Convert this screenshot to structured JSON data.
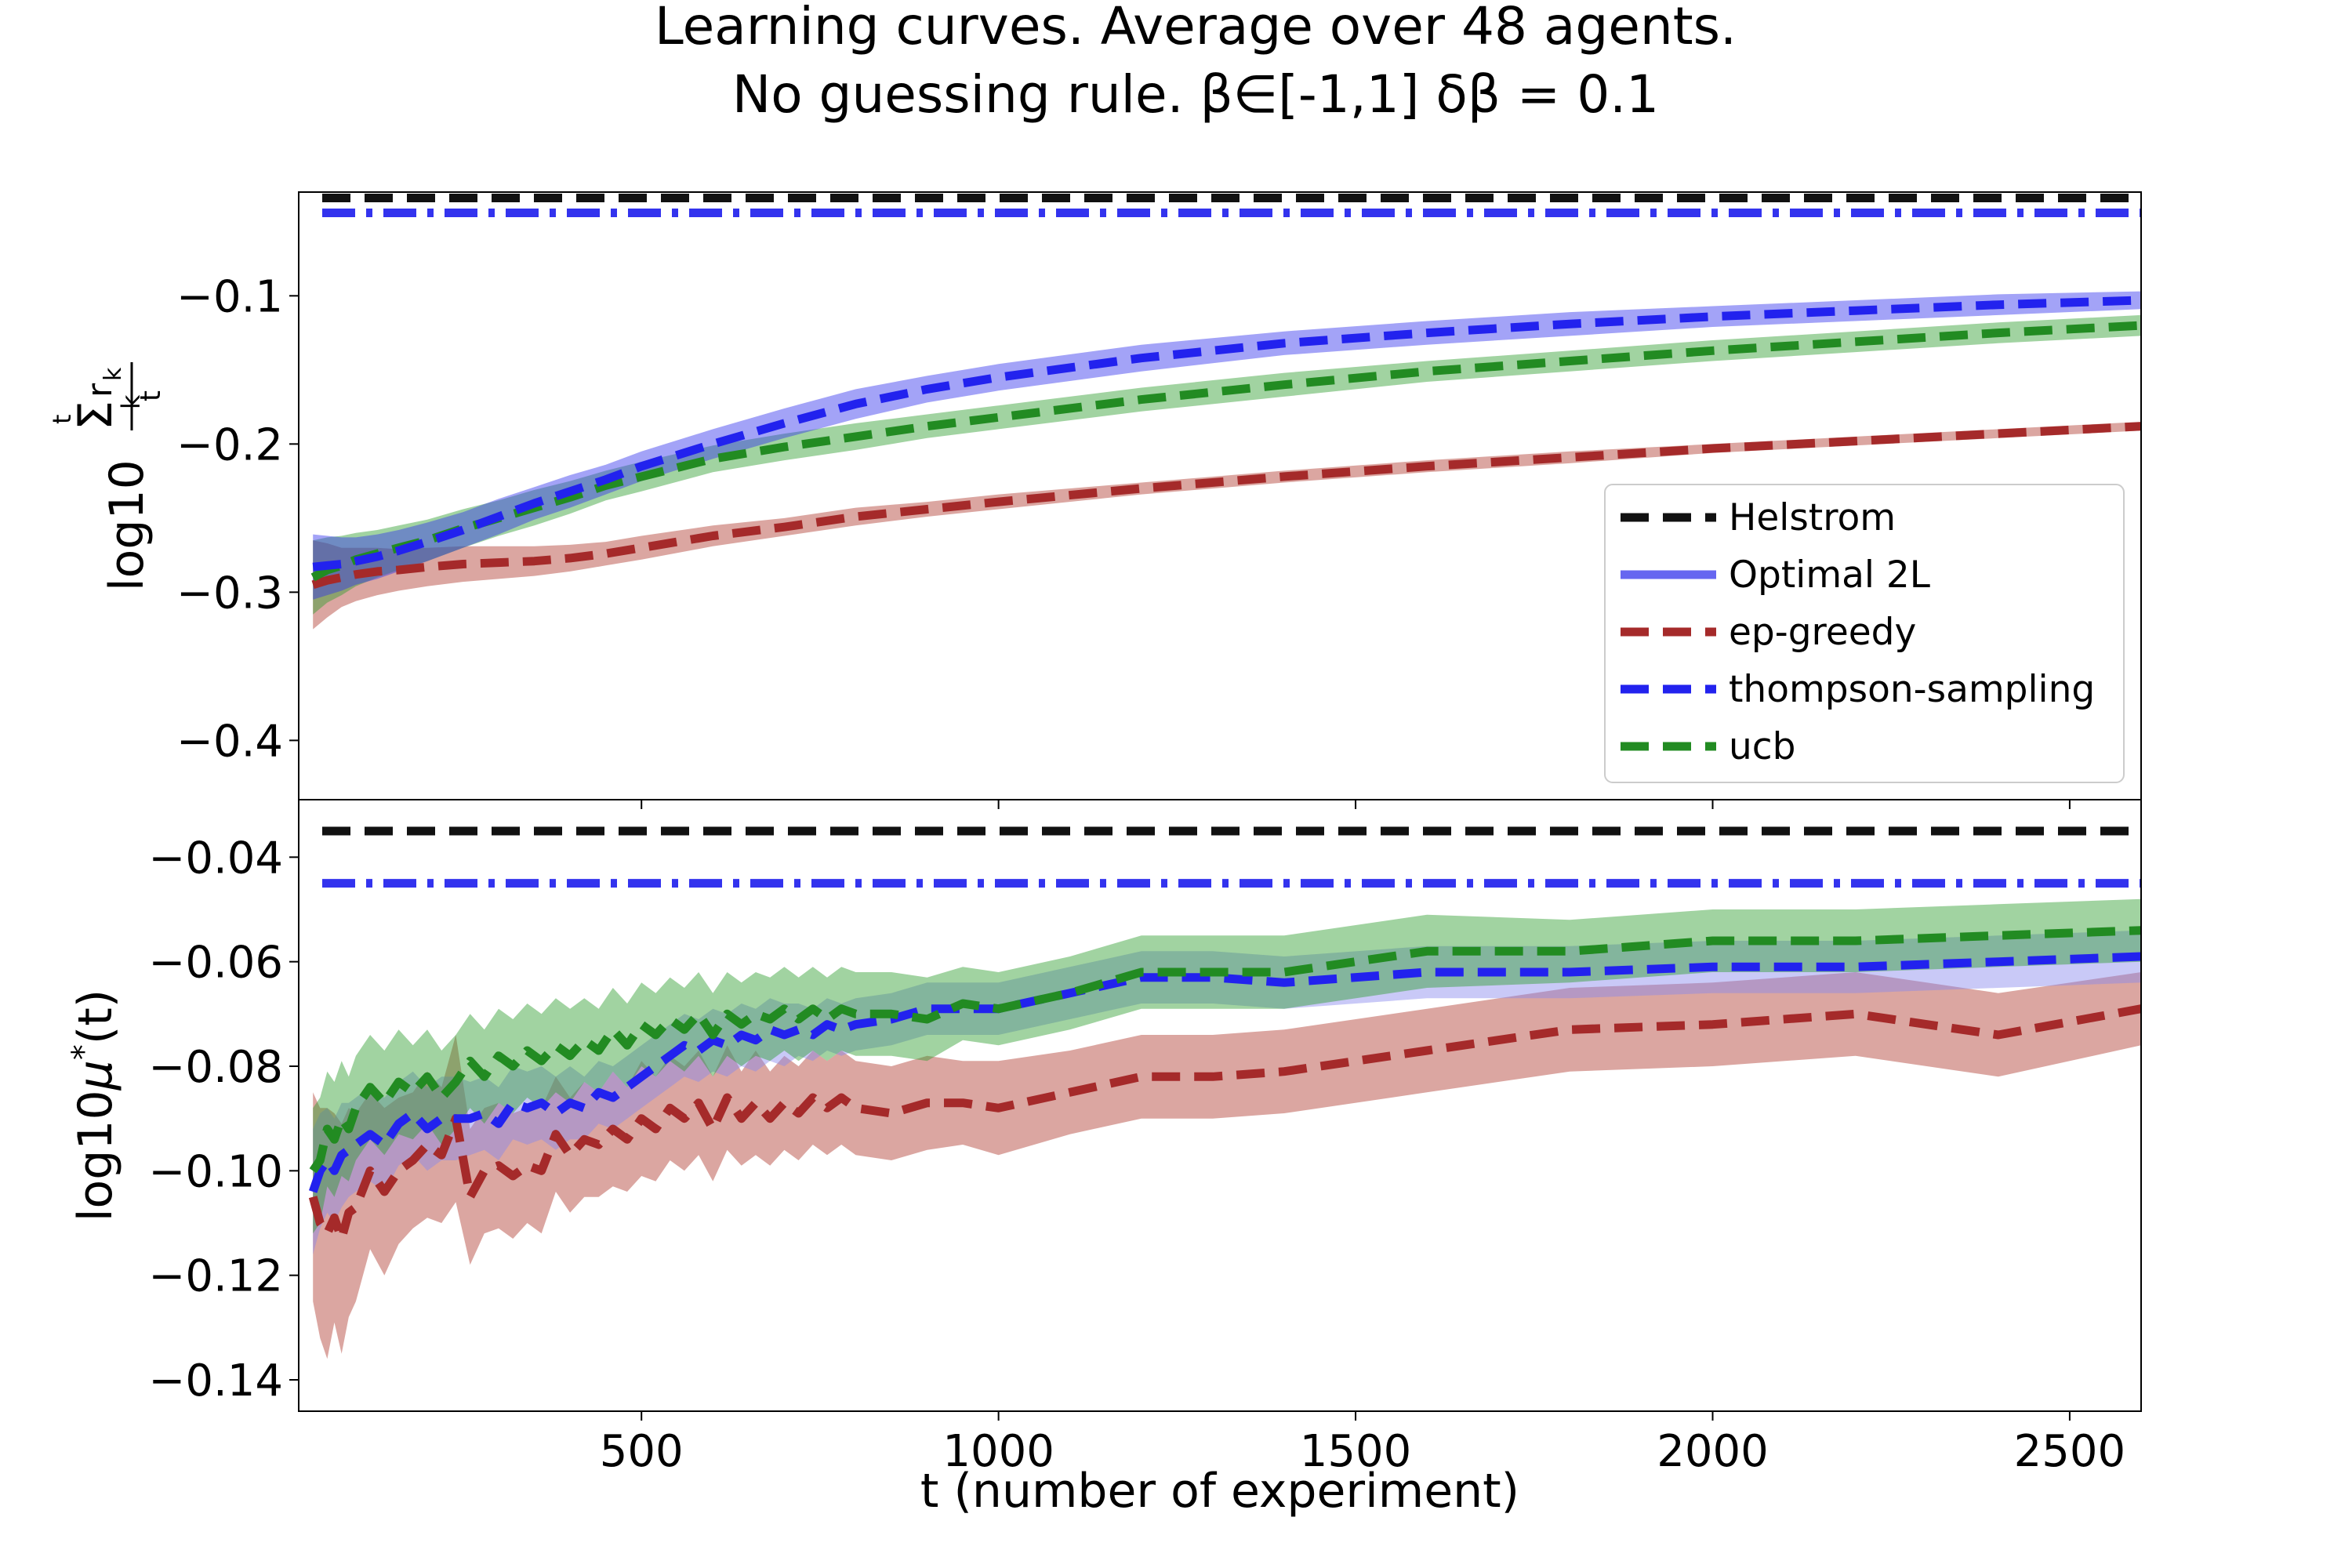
{
  "chart_data": {
    "type": "line",
    "title_line1": "Learning curves. Average over 48 agents.",
    "title_line2": "No guessing rule. β∈[-1,1] δβ =  0.1",
    "xlabel": "t (number of experiment)",
    "xlim": [
      20,
      2600
    ],
    "xticks": [
      500,
      1000,
      1500,
      2000,
      2500
    ],
    "xtick_labels": [
      "500",
      "1000",
      "1500",
      "2000",
      "2500"
    ],
    "legend": {
      "placement": "lower-right of top panel",
      "entries": [
        {
          "label": "Helstrom",
          "color": "#111111",
          "style": "dashed"
        },
        {
          "label": "Optimal 2L",
          "color": "#5555ee",
          "style": "solid"
        },
        {
          "label": "ep-greedy",
          "color": "#a52a2a",
          "style": "dashed"
        },
        {
          "label": "thompson-sampling",
          "color": "#2222ee",
          "style": "dashed"
        },
        {
          "label": "ucb",
          "color": "#228b22",
          "style": "dashed"
        }
      ]
    },
    "panels": [
      {
        "ylabel_main": "log10",
        "ylabel_sigma": "Σ",
        "ylabel_sup": "t",
        "ylabel_sub": "k",
        "ylabel_r": "r",
        "ylabel_rk": "k",
        "ylabel_den": "t",
        "ylim": [
          -0.44,
          -0.03
        ],
        "yticks": [
          -0.1,
          -0.2,
          -0.3,
          -0.4
        ],
        "ytick_labels": [
          "−0.1",
          "−0.2",
          "−0.3",
          "−0.4"
        ],
        "hlines": [
          {
            "name": "Helstrom",
            "y": -0.034,
            "color": "#111111",
            "style": "dashed"
          },
          {
            "name": "Optimal 2L",
            "y": -0.044,
            "color": "#3333ee",
            "style": "dashdot"
          }
        ],
        "series": [
          {
            "name": "ep-greedy",
            "color": "#a52a2a",
            "band_color": "#b03a2e",
            "x": [
              40,
              60,
              80,
              100,
              130,
              160,
              200,
              250,
              300,
              350,
              400,
              450,
              500,
              600,
              700,
              800,
              900,
              1000,
              1200,
              1400,
              1600,
              1800,
              2000,
              2200,
              2400,
              2600
            ],
            "y": [
              -0.295,
              -0.292,
              -0.29,
              -0.288,
              -0.286,
              -0.285,
              -0.283,
              -0.281,
              -0.28,
              -0.279,
              -0.277,
              -0.274,
              -0.27,
              -0.262,
              -0.256,
              -0.249,
              -0.244,
              -0.239,
              -0.23,
              -0.222,
              -0.215,
              -0.209,
              -0.203,
              -0.198,
              -0.193,
              -0.188
            ],
            "spread": [
              0.03,
              0.025,
              0.02,
              0.018,
              0.016,
              0.014,
              0.013,
              0.012,
              0.011,
              0.01,
              0.009,
              0.008,
              0.008,
              0.007,
              0.006,
              0.006,
              0.005,
              0.005,
              0.004,
              0.004,
              0.004,
              0.004,
              0.003,
              0.003,
              0.003,
              0.003
            ]
          },
          {
            "name": "ucb",
            "color": "#228b22",
            "band_color": "#2e9e2e",
            "x": [
              40,
              60,
              80,
              100,
              130,
              160,
              200,
              250,
              300,
              350,
              400,
              450,
              500,
              600,
              700,
              800,
              900,
              1000,
              1200,
              1400,
              1600,
              1800,
              2000,
              2200,
              2400,
              2600
            ],
            "y": [
              -0.29,
              -0.285,
              -0.282,
              -0.278,
              -0.274,
              -0.27,
              -0.265,
              -0.257,
              -0.25,
              -0.243,
              -0.236,
              -0.228,
              -0.222,
              -0.21,
              -0.202,
              -0.195,
              -0.188,
              -0.182,
              -0.17,
              -0.16,
              -0.151,
              -0.144,
              -0.137,
              -0.131,
              -0.125,
              -0.12
            ],
            "spread": [
              0.025,
              0.022,
              0.02,
              0.018,
              0.016,
              0.015,
              0.014,
              0.013,
              0.012,
              0.012,
              0.011,
              0.01,
              0.01,
              0.009,
              0.009,
              0.009,
              0.008,
              0.008,
              0.008,
              0.008,
              0.007,
              0.007,
              0.007,
              0.007,
              0.007,
              0.007
            ]
          },
          {
            "name": "thompson-sampling",
            "color": "#2222ee",
            "band_color": "#3333ee",
            "x": [
              40,
              60,
              80,
              100,
              130,
              160,
              200,
              250,
              300,
              350,
              400,
              450,
              500,
              600,
              700,
              800,
              900,
              1000,
              1200,
              1400,
              1600,
              1800,
              2000,
              2200,
              2400,
              2600
            ],
            "y": [
              -0.283,
              -0.282,
              -0.281,
              -0.279,
              -0.276,
              -0.272,
              -0.266,
              -0.258,
              -0.249,
              -0.24,
              -0.232,
              -0.224,
              -0.215,
              -0.2,
              -0.186,
              -0.173,
              -0.163,
              -0.155,
              -0.142,
              -0.132,
              -0.125,
              -0.119,
              -0.114,
              -0.11,
              -0.106,
              -0.103
            ],
            "spread": [
              0.022,
              0.02,
              0.018,
              0.016,
              0.015,
              0.014,
              0.013,
              0.012,
              0.012,
              0.011,
              0.011,
              0.01,
              0.01,
              0.01,
              0.01,
              0.01,
              0.009,
              0.009,
              0.009,
              0.008,
              0.008,
              0.008,
              0.007,
              0.007,
              0.007,
              0.006
            ]
          }
        ]
      },
      {
        "ylabel": "log10μ*(t)",
        "ylabel_main": "log10",
        "ylabel_mu": "μ",
        "ylabel_star": "*",
        "ylabel_tail": "(t)",
        "ylim": [
          -0.146,
          -0.029
        ],
        "yticks": [
          -0.04,
          -0.06,
          -0.08,
          -0.1,
          -0.12,
          -0.14
        ],
        "ytick_labels": [
          "−0.04",
          "−0.06",
          "−0.08",
          "−0.10",
          "−0.12",
          "−0.14"
        ],
        "hlines": [
          {
            "name": "Helstrom",
            "y": -0.035,
            "color": "#111111",
            "style": "dashed"
          },
          {
            "name": "Optimal 2L",
            "y": -0.045,
            "color": "#3333ee",
            "style": "dashdot"
          }
        ],
        "series": [
          {
            "name": "ep-greedy",
            "color": "#a52a2a",
            "band_color": "#b03a2e",
            "x": [
              40,
              50,
              60,
              70,
              80,
              90,
              100,
              120,
              140,
              160,
              180,
              200,
              220,
              240,
              260,
              280,
              300,
              320,
              340,
              360,
              380,
              400,
              420,
              440,
              460,
              480,
              500,
              520,
              540,
              560,
              580,
              600,
              620,
              640,
              660,
              680,
              700,
              720,
              740,
              760,
              780,
              800,
              850,
              900,
              950,
              1000,
              1100,
              1200,
              1300,
              1400,
              1600,
              1800,
              2000,
              2200,
              2400,
              2600
            ],
            "y": [
              -0.105,
              -0.11,
              -0.112,
              -0.109,
              -0.113,
              -0.108,
              -0.107,
              -0.1,
              -0.104,
              -0.1,
              -0.098,
              -0.095,
              -0.097,
              -0.09,
              -0.105,
              -0.1,
              -0.099,
              -0.101,
              -0.099,
              -0.1,
              -0.093,
              -0.097,
              -0.094,
              -0.095,
              -0.092,
              -0.094,
              -0.09,
              -0.092,
              -0.088,
              -0.09,
              -0.087,
              -0.092,
              -0.086,
              -0.09,
              -0.087,
              -0.09,
              -0.087,
              -0.089,
              -0.086,
              -0.088,
              -0.086,
              -0.088,
              -0.089,
              -0.087,
              -0.087,
              -0.088,
              -0.085,
              -0.082,
              -0.082,
              -0.081,
              -0.077,
              -0.073,
              -0.072,
              -0.07,
              -0.074,
              -0.069
            ],
            "spread": [
              0.02,
              0.022,
              0.024,
              0.02,
              0.022,
              0.02,
              0.018,
              0.015,
              0.016,
              0.014,
              0.013,
              0.014,
              0.013,
              0.016,
              0.013,
              0.012,
              0.012,
              0.012,
              0.011,
              0.012,
              0.011,
              0.011,
              0.011,
              0.01,
              0.011,
              0.01,
              0.011,
              0.01,
              0.01,
              0.01,
              0.01,
              0.01,
              0.01,
              0.009,
              0.01,
              0.009,
              0.009,
              0.009,
              0.009,
              0.009,
              0.009,
              0.009,
              0.009,
              0.009,
              0.008,
              0.009,
              0.008,
              0.008,
              0.008,
              0.008,
              0.008,
              0.008,
              0.008,
              0.008,
              0.008,
              0.007
            ]
          },
          {
            "name": "thompson-sampling",
            "color": "#2222ee",
            "band_color": "#8888ee",
            "x": [
              40,
              50,
              60,
              70,
              80,
              90,
              100,
              120,
              140,
              160,
              180,
              200,
              220,
              240,
              260,
              280,
              300,
              320,
              340,
              360,
              380,
              400,
              420,
              440,
              460,
              480,
              500,
              520,
              540,
              560,
              580,
              600,
              620,
              640,
              660,
              680,
              700,
              720,
              740,
              760,
              780,
              800,
              850,
              900,
              950,
              1000,
              1100,
              1200,
              1300,
              1400,
              1600,
              1800,
              2000,
              2200,
              2400,
              2600
            ],
            "y": [
              -0.104,
              -0.1,
              -0.098,
              -0.1,
              -0.097,
              -0.096,
              -0.095,
              -0.093,
              -0.095,
              -0.091,
              -0.089,
              -0.092,
              -0.09,
              -0.09,
              -0.09,
              -0.089,
              -0.091,
              -0.087,
              -0.088,
              -0.087,
              -0.089,
              -0.087,
              -0.088,
              -0.085,
              -0.086,
              -0.084,
              -0.082,
              -0.08,
              -0.078,
              -0.076,
              -0.077,
              -0.075,
              -0.076,
              -0.074,
              -0.075,
              -0.073,
              -0.074,
              -0.073,
              -0.074,
              -0.072,
              -0.073,
              -0.072,
              -0.071,
              -0.069,
              -0.069,
              -0.069,
              -0.066,
              -0.063,
              -0.063,
              -0.064,
              -0.062,
              -0.062,
              -0.061,
              -0.061,
              -0.06,
              -0.059
            ],
            "spread": [
              0.012,
              0.011,
              0.01,
              0.01,
              0.01,
              0.009,
              0.009,
              0.009,
              0.009,
              0.008,
              0.008,
              0.008,
              0.008,
              0.008,
              0.007,
              0.007,
              0.007,
              0.007,
              0.007,
              0.007,
              0.007,
              0.007,
              0.006,
              0.006,
              0.006,
              0.006,
              0.006,
              0.006,
              0.006,
              0.006,
              0.006,
              0.006,
              0.006,
              0.006,
              0.006,
              0.006,
              0.006,
              0.005,
              0.005,
              0.005,
              0.005,
              0.005,
              0.005,
              0.005,
              0.005,
              0.005,
              0.005,
              0.005,
              0.005,
              0.005,
              0.005,
              0.005,
              0.005,
              0.005,
              0.005,
              0.005
            ]
          },
          {
            "name": "ucb",
            "color": "#228b22",
            "band_color": "#2e9e2e",
            "x": [
              40,
              50,
              60,
              70,
              80,
              90,
              100,
              120,
              140,
              160,
              180,
              200,
              220,
              240,
              260,
              280,
              300,
              320,
              340,
              360,
              380,
              400,
              420,
              440,
              460,
              480,
              500,
              520,
              540,
              560,
              580,
              600,
              620,
              640,
              660,
              680,
              700,
              720,
              740,
              760,
              780,
              800,
              850,
              900,
              950,
              1000,
              1100,
              1200,
              1300,
              1400,
              1600,
              1800,
              2000,
              2200,
              2400,
              2600
            ],
            "y": [
              -0.1,
              -0.098,
              -0.092,
              -0.094,
              -0.09,
              -0.092,
              -0.088,
              -0.084,
              -0.087,
              -0.083,
              -0.085,
              -0.082,
              -0.086,
              -0.083,
              -0.079,
              -0.082,
              -0.078,
              -0.08,
              -0.077,
              -0.079,
              -0.076,
              -0.078,
              -0.075,
              -0.077,
              -0.073,
              -0.076,
              -0.072,
              -0.074,
              -0.071,
              -0.073,
              -0.07,
              -0.074,
              -0.07,
              -0.072,
              -0.07,
              -0.071,
              -0.069,
              -0.071,
              -0.069,
              -0.071,
              -0.069,
              -0.07,
              -0.07,
              -0.071,
              -0.068,
              -0.069,
              -0.066,
              -0.062,
              -0.062,
              -0.062,
              -0.058,
              -0.058,
              -0.056,
              -0.056,
              -0.055,
              -0.054
            ],
            "spread": [
              0.012,
              0.012,
              0.011,
              0.011,
              0.011,
              0.01,
              0.01,
              0.01,
              0.01,
              0.01,
              0.009,
              0.009,
              0.009,
              0.009,
              0.009,
              0.009,
              0.009,
              0.009,
              0.009,
              0.009,
              0.009,
              0.009,
              0.008,
              0.008,
              0.008,
              0.008,
              0.008,
              0.008,
              0.008,
              0.008,
              0.008,
              0.008,
              0.008,
              0.008,
              0.008,
              0.008,
              0.008,
              0.008,
              0.008,
              0.008,
              0.008,
              0.008,
              0.008,
              0.008,
              0.007,
              0.007,
              0.007,
              0.007,
              0.007,
              0.007,
              0.007,
              0.006,
              0.006,
              0.006,
              0.006,
              0.006
            ]
          }
        ]
      }
    ]
  }
}
